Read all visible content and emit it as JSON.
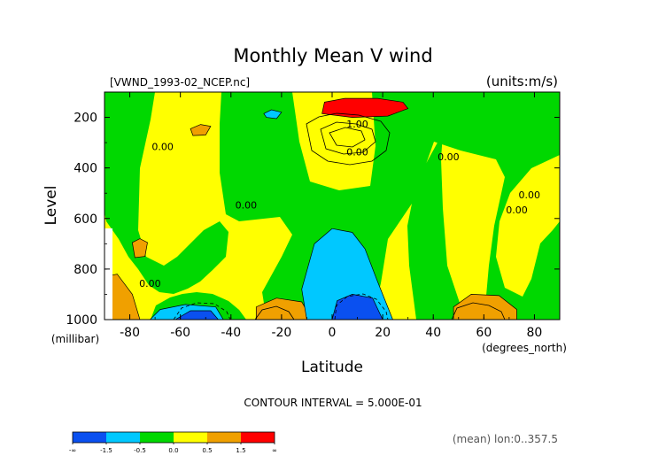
{
  "chart_data": {
    "type": "heatmap",
    "title": "Monthly Mean V wind",
    "source_label": "[VWND_1993-02_NCEP.nc]",
    "units_label": "(units:m/s)",
    "xlabel": "Latitude",
    "x_unit_label": "(degrees_north)",
    "ylabel": "Level",
    "y_unit_label": "(millibar)",
    "xlim": [
      -90,
      90
    ],
    "ylim": [
      1000,
      100
    ],
    "y_reversed": true,
    "x_ticks": [
      -80,
      -60,
      -40,
      -20,
      0,
      20,
      40,
      60,
      80
    ],
    "x_tick_labels": [
      "-80",
      "-60",
      "-40",
      "-20",
      "0",
      "20",
      "40",
      "60",
      "80"
    ],
    "y_ticks": [
      200,
      400,
      600,
      800,
      1000
    ],
    "y_tick_labels": [
      "200",
      "400",
      "600",
      "800",
      "1000"
    ],
    "contour_interval_text": "CONTOUR INTERVAL = 5.000E-01",
    "footer_text": "(mean) lon:0..357.5",
    "contour_labels": [
      {
        "text": "1.00",
        "x": 10,
        "y": 240
      },
      {
        "text": "0.00",
        "x": 10,
        "y": 350
      },
      {
        "text": "0.00",
        "x": -67,
        "y": 330
      },
      {
        "text": "0.00",
        "x": -34,
        "y": 560
      },
      {
        "text": "0.00",
        "x": 46,
        "y": 370
      },
      {
        "text": "0.00",
        "x": 73,
        "y": 580
      },
      {
        "text": "0.00",
        "x": 78,
        "y": 520
      },
      {
        "text": "0.00",
        "x": -72,
        "y": 870
      }
    ],
    "colorbar": {
      "levels": [
        {
          "color": "#0a50f0",
          "range": "< -1.5"
        },
        {
          "color": "#00c8ff",
          "range": "-1.5 to -0.5"
        },
        {
          "color": "#00d800",
          "range": "-0.5 to 0.0"
        },
        {
          "color": "#ffff00",
          "range": "0.0 to 0.5"
        },
        {
          "color": "#f0a000",
          "range": "0.5 to 1.5"
        },
        {
          "color": "#ff0000",
          "range": "> 1.5"
        }
      ],
      "tick_labels": [
        "-∞",
        "-1.5",
        "-0.5",
        "0.0",
        "0.5",
        "1.5",
        "∞"
      ]
    },
    "regions": [
      {
        "name": "jet-positive-core",
        "color": "#ff0000",
        "points": [
          [
            -3,
            140
          ],
          [
            5,
            125
          ],
          [
            18,
            125
          ],
          [
            28,
            140
          ],
          [
            30,
            165
          ],
          [
            22,
            195
          ],
          [
            8,
            200
          ],
          [
            -4,
            185
          ]
        ]
      },
      {
        "name": "north-surface-positive",
        "color": "#f0a000",
        "points": [
          [
            48,
            1000
          ],
          [
            48,
            950
          ],
          [
            55,
            900
          ],
          [
            66,
            905
          ],
          [
            73,
            960
          ],
          [
            73,
            1000
          ]
        ]
      },
      {
        "name": "south-surface-positive",
        "color": "#f0a000",
        "points": [
          [
            -30,
            1000
          ],
          [
            -30,
            950
          ],
          [
            -22,
            915
          ],
          [
            -12,
            930
          ],
          [
            -8,
            1000
          ]
        ]
      },
      {
        "name": "antarctic-positive",
        "color": "#f0a000",
        "points": [
          [
            -90,
            830
          ],
          [
            -85,
            820
          ],
          [
            -79,
            900
          ],
          [
            -76,
            1000
          ],
          [
            -90,
            1000
          ]
        ]
      },
      {
        "name": "small-positive-250",
        "color": "#f0a000",
        "points": [
          [
            -56,
            245
          ],
          [
            -52,
            228
          ],
          [
            -48,
            235
          ],
          [
            -50,
            270
          ],
          [
            -55,
            272
          ]
        ]
      },
      {
        "name": "small-positive-720",
        "color": "#f0a000",
        "points": [
          [
            -79,
            695
          ],
          [
            -76,
            680
          ],
          [
            -73,
            695
          ],
          [
            -74,
            750
          ],
          [
            -78,
            755
          ]
        ]
      },
      {
        "name": "equatorial-negative-trough",
        "color": "#00c8ff",
        "points": [
          [
            -10,
            1000
          ],
          [
            -12,
            880
          ],
          [
            -7,
            700
          ],
          [
            0,
            640
          ],
          [
            8,
            655
          ],
          [
            13,
            720
          ],
          [
            18,
            850
          ],
          [
            24,
            1000
          ]
        ]
      },
      {
        "name": "southern-negative-trough",
        "color": "#00c8ff",
        "points": [
          [
            -72,
            1000
          ],
          [
            -68,
            960
          ],
          [
            -58,
            940
          ],
          [
            -46,
            950
          ],
          [
            -43,
            1000
          ]
        ]
      },
      {
        "name": "southern-negative-core",
        "color": "#0a50f0",
        "points": [
          [
            -62,
            1000
          ],
          [
            -56,
            965
          ],
          [
            -48,
            965
          ],
          [
            -45,
            1000
          ]
        ]
      },
      {
        "name": "equatorial-negative-core",
        "color": "#0a50f0",
        "points": [
          [
            0,
            1000
          ],
          [
            2,
            925
          ],
          [
            8,
            900
          ],
          [
            16,
            915
          ],
          [
            20,
            1000
          ]
        ]
      },
      {
        "name": "small-negative-200",
        "color": "#00c8ff",
        "points": [
          [
            -27,
            185
          ],
          [
            -24,
            170
          ],
          [
            -20,
            180
          ],
          [
            -22,
            205
          ],
          [
            -26,
            200
          ]
        ]
      }
    ]
  }
}
